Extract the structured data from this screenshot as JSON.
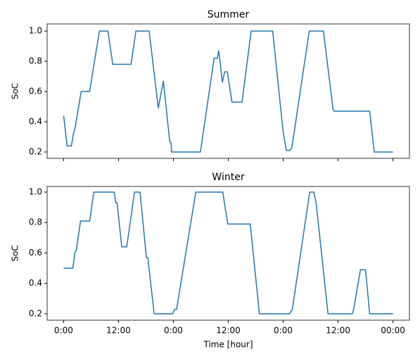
{
  "chart_data": [
    {
      "type": "line",
      "title": "Summer",
      "ylabel": "SoC",
      "x": [
        0,
        0.77,
        1.7,
        2.15,
        2.46,
        3.84,
        5.68,
        7.83,
        9.67,
        10.75,
        14.74,
        15.8,
        18.7,
        20.7,
        21.8,
        23.2,
        23.5,
        23.6,
        29.9,
        32.9,
        33.6,
        33.9,
        34.2,
        34.7,
        35.2,
        35.8,
        36.8,
        39,
        41,
        45.7,
        48,
        48.7,
        49.4,
        49.9,
        53.7,
        56.8,
        58.9,
        59.2,
        66.9,
        67.9,
        72
      ],
      "series": [
        {
          "color": "#1f77b4",
          "values": [
            0.44,
            0.24,
            0.24,
            0.32,
            0.35,
            0.6,
            0.6,
            1.0,
            1.0,
            0.78,
            0.78,
            1.0,
            1.0,
            0.49,
            0.67,
            0.27,
            0.26,
            0.2,
            0.2,
            0.82,
            0.82,
            0.87,
            0.8,
            0.66,
            0.73,
            0.73,
            0.53,
            0.53,
            1.0,
            1.0,
            0.33,
            0.21,
            0.21,
            0.23,
            1.0,
            1.0,
            0.48,
            0.47,
            0.47,
            0.2,
            0.2
          ]
        }
      ],
      "xlim": [
        -3.6,
        75.6
      ],
      "ylim": [
        0.158,
        1.047
      ],
      "xticks": [
        0,
        12,
        24,
        36,
        48,
        60,
        72
      ],
      "yticks": [
        0.2,
        0.4,
        0.6,
        0.8,
        {
          "value": 1.0,
          "label": "1.0"
        }
      ]
    },
    {
      "type": "line",
      "title": "Winter",
      "ylabel": "SoC",
      "xlabel": "Time [hour]",
      "x": [
        0,
        2,
        2.46,
        2.8,
        3.7,
        5.7,
        6.6,
        11.05,
        11.4,
        11.7,
        12.7,
        13.8,
        15.5,
        16.7,
        18.1,
        18.4,
        19.8,
        23.8,
        24.3,
        24.7,
        28.9,
        34.8,
        35.3,
        35.9,
        40.8,
        42.8,
        49.4,
        50,
        53.8,
        54.7,
        55.2,
        57.8,
        63.1,
        63.4,
        64.9,
        66,
        66.9,
        72
      ],
      "series": [
        {
          "color": "#1f77b4",
          "values": [
            0.5,
            0.5,
            0.6,
            0.62,
            0.81,
            0.81,
            1.0,
            1.0,
            0.93,
            0.93,
            0.64,
            0.64,
            1.0,
            1.0,
            0.57,
            0.57,
            0.2,
            0.2,
            0.23,
            0.23,
            1.0,
            1.0,
            0.9,
            0.79,
            0.79,
            0.2,
            0.2,
            0.23,
            1.0,
            1.0,
            0.93,
            0.2,
            0.2,
            0.23,
            0.49,
            0.49,
            0.2,
            0.2
          ]
        }
      ],
      "xlim": [
        -3.6,
        75.6
      ],
      "ylim": [
        0.158,
        1.037
      ],
      "xticks": [
        {
          "value": 0,
          "label": "0:00"
        },
        {
          "value": 12,
          "label": "12:00"
        },
        {
          "value": 24,
          "label": "0:00"
        },
        {
          "value": 36,
          "label": "12:00"
        },
        {
          "value": 48,
          "label": "0:00"
        },
        {
          "value": 60,
          "label": "12:00"
        },
        {
          "value": 72,
          "label": "00:00"
        }
      ],
      "yticks": [
        0.2,
        0.4,
        0.6,
        0.8,
        {
          "value": 1.0,
          "label": "1.0"
        }
      ]
    }
  ]
}
